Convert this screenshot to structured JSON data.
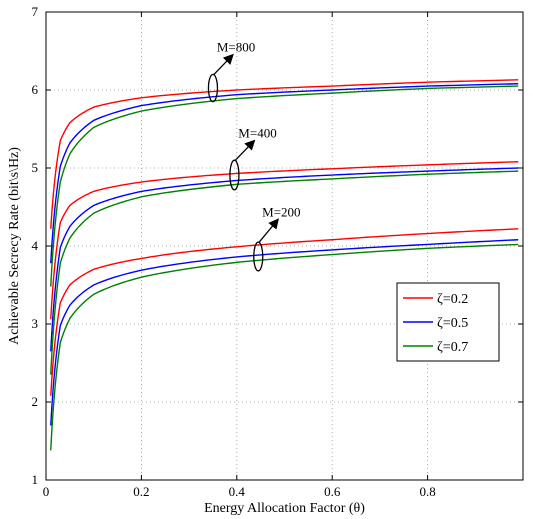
{
  "chart_data": {
    "type": "line",
    "xlabel": "Energy Allocation Factor (θ)",
    "ylabel": "Achievable Secrecy Rate (bit\\s\\Hz)",
    "xlim": [
      0,
      1
    ],
    "ylim": [
      1,
      7
    ],
    "x_ticks": [
      "0",
      "0.2",
      "0.4",
      "0.6",
      "0.8"
    ],
    "x_tick_values": [
      0,
      0.2,
      0.4,
      0.6,
      0.8
    ],
    "y_ticks": [
      "1",
      "2",
      "3",
      "4",
      "5",
      "6",
      "7"
    ],
    "y_tick_values": [
      1,
      2,
      3,
      4,
      5,
      6,
      7
    ],
    "grid": true,
    "legend_position": "right",
    "x": [
      0.01,
      0.03,
      0.05,
      0.1,
      0.2,
      0.4,
      0.6,
      0.8,
      0.99
    ],
    "series": [
      {
        "name": "ζ=0.2",
        "color": "#ff0000",
        "group": "M=800",
        "values": [
          4.22,
          5.35,
          5.58,
          5.78,
          5.9,
          6.0,
          6.05,
          6.1,
          6.13
        ]
      },
      {
        "name": "ζ=0.5",
        "color": "#0000ff",
        "group": "M=800",
        "values": [
          3.78,
          5.02,
          5.32,
          5.61,
          5.8,
          5.94,
          6.0,
          6.05,
          6.08
        ]
      },
      {
        "name": "ζ=0.7",
        "color": "#008000",
        "group": "M=800",
        "values": [
          3.48,
          4.82,
          5.18,
          5.52,
          5.73,
          5.89,
          5.96,
          6.02,
          6.05
        ]
      },
      {
        "name": "ζ=0.2",
        "color": "#ff0000",
        "group": "M=400",
        "values": [
          3.06,
          4.3,
          4.52,
          4.7,
          4.82,
          4.93,
          4.99,
          5.04,
          5.08
        ]
      },
      {
        "name": "ζ=0.5",
        "color": "#0000ff",
        "group": "M=400",
        "values": [
          2.65,
          3.98,
          4.25,
          4.52,
          4.7,
          4.84,
          4.91,
          4.96,
          5.0
        ]
      },
      {
        "name": "ζ=0.7",
        "color": "#008000",
        "group": "M=400",
        "values": [
          2.35,
          3.78,
          4.1,
          4.42,
          4.63,
          4.79,
          4.86,
          4.92,
          4.96
        ]
      },
      {
        "name": "ζ=0.2",
        "color": "#ff0000",
        "group": "M=200",
        "values": [
          2.08,
          3.27,
          3.5,
          3.7,
          3.84,
          3.99,
          4.08,
          4.16,
          4.22
        ]
      },
      {
        "name": "ζ=0.5",
        "color": "#0000ff",
        "group": "M=200",
        "values": [
          1.7,
          2.98,
          3.24,
          3.5,
          3.69,
          3.86,
          3.95,
          4.02,
          4.08
        ]
      },
      {
        "name": "ζ=0.7",
        "color": "#008000",
        "group": "M=200",
        "values": [
          1.38,
          2.76,
          3.07,
          3.38,
          3.6,
          3.79,
          3.89,
          3.97,
          4.02
        ]
      }
    ],
    "legend": [
      {
        "label": "ζ=0.2",
        "color": "#ff0000"
      },
      {
        "label": "ζ=0.5",
        "color": "#0000ff"
      },
      {
        "label": "ζ=0.7",
        "color": "#008000"
      }
    ],
    "annotations": [
      {
        "text": "M=800",
        "x": 0.35,
        "y": 6.0,
        "y_span": [
          5.85,
          6.2
        ],
        "arrow_to": [
          0.39,
          6.44
        ]
      },
      {
        "text": "M=400",
        "x": 0.395,
        "y": 4.9,
        "y_span": [
          4.72,
          5.1
        ],
        "arrow_to": [
          0.435,
          5.34
        ]
      },
      {
        "text": "M=200",
        "x": 0.445,
        "y": 3.88,
        "y_span": [
          3.68,
          4.05
        ],
        "arrow_to": [
          0.485,
          4.33
        ]
      }
    ]
  }
}
